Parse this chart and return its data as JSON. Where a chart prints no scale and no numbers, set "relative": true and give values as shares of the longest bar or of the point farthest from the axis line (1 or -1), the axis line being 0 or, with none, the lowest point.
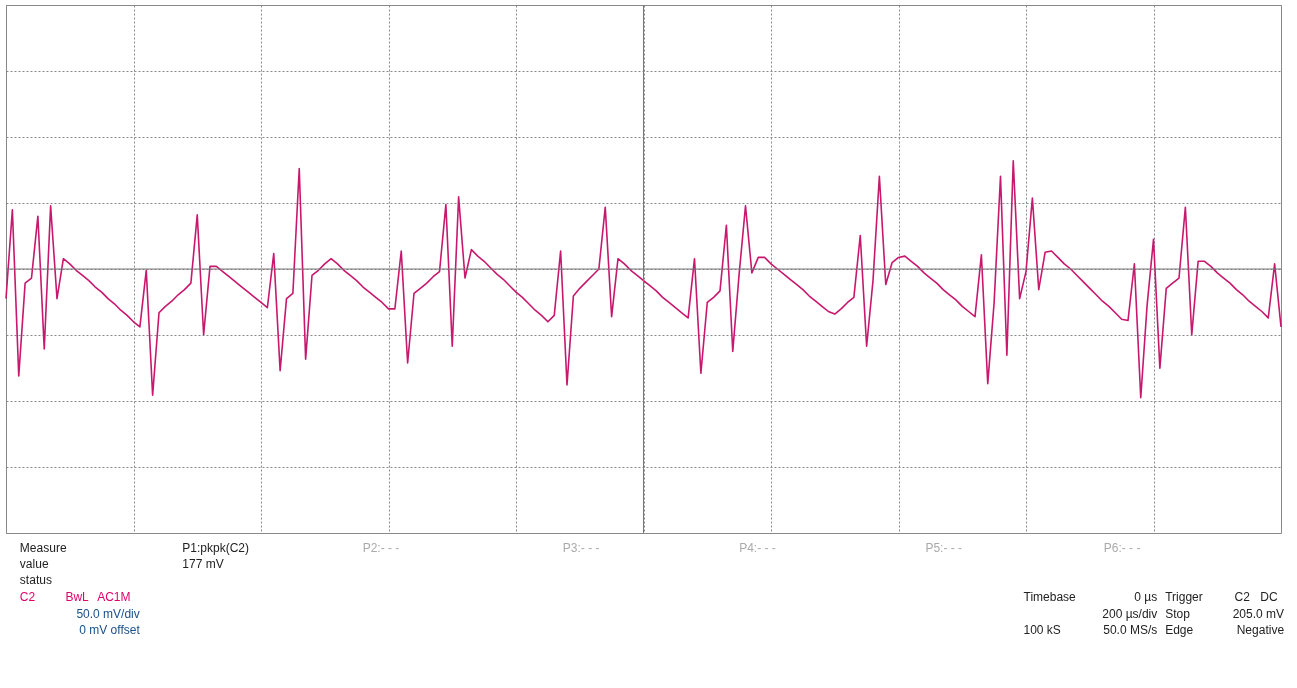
{
  "chart_data": {
    "type": "line",
    "relative": true,
    "tick_labels": false,
    "grid": true,
    "marker": "none",
    "line_style": "solid",
    "categories": [
      null,
      null,
      null,
      null,
      null,
      null,
      null,
      null,
      null,
      null,
      null,
      null,
      null,
      null,
      null,
      null,
      null,
      null,
      null,
      null,
      null,
      null,
      null,
      null,
      null,
      null,
      null,
      null,
      null,
      null,
      null,
      null,
      null,
      null,
      null,
      null,
      null,
      null,
      null,
      null,
      null,
      null,
      null,
      null,
      null,
      null,
      null,
      null,
      null,
      null,
      null,
      null,
      null,
      null,
      null,
      null,
      null,
      null,
      null,
      null,
      null,
      null,
      null,
      null,
      null,
      null,
      null,
      null,
      null,
      null,
      null,
      null,
      null,
      null,
      null,
      null,
      null,
      null,
      null,
      null,
      null,
      null,
      null,
      null,
      null,
      null,
      null,
      null,
      null,
      null,
      null,
      null,
      null,
      null,
      null,
      null,
      null,
      null,
      null,
      null,
      null,
      null,
      null,
      null,
      null,
      null,
      null,
      null,
      null,
      null,
      null,
      null,
      null,
      null,
      null,
      null,
      null,
      null,
      null,
      null,
      null,
      null,
      null,
      null,
      null,
      null,
      null,
      null,
      null,
      null,
      null,
      null,
      null,
      null,
      null,
      null,
      null,
      null,
      null,
      null,
      null,
      null,
      null,
      null,
      null,
      null,
      null,
      null,
      null,
      null,
      null,
      null,
      null,
      null,
      null,
      null,
      null,
      null,
      null,
      null,
      null,
      null,
      null,
      null,
      null,
      null,
      null,
      null,
      null,
      null,
      null,
      null,
      null,
      null,
      null,
      null,
      null,
      null,
      null,
      null,
      null,
      null,
      null,
      null,
      null,
      null,
      null,
      null,
      null,
      null,
      null,
      null,
      null,
      null,
      null,
      null,
      null,
      null,
      null,
      null,
      null
    ],
    "series": [
      {
        "color": "#c8186e",
        "values": [
          -0.23,
          0.46,
          -0.83,
          -0.11,
          -0.07,
          0.41,
          -0.62,
          0.49,
          -0.23,
          0.08,
          0.04,
          -0.01,
          -0.05,
          -0.09,
          -0.14,
          -0.18,
          -0.23,
          -0.27,
          -0.32,
          -0.36,
          -0.41,
          -0.45,
          -0.01,
          -0.98,
          -0.34,
          -0.29,
          -0.25,
          -0.2,
          -0.16,
          -0.11,
          0.42,
          -0.51,
          0.02,
          0.02,
          -0.02,
          -0.06,
          -0.1,
          -0.14,
          -0.18,
          -0.22,
          -0.26,
          -0.3,
          0.12,
          -0.79,
          -0.23,
          -0.19,
          0.78,
          -0.7,
          -0.05,
          -0.01,
          0.04,
          0.08,
          0.04,
          -0.01,
          -0.05,
          -0.09,
          -0.14,
          -0.18,
          -0.22,
          -0.26,
          -0.31,
          -0.31,
          0.14,
          -0.73,
          -0.19,
          -0.15,
          -0.11,
          -0.06,
          -0.02,
          0.5,
          -0.6,
          0.56,
          -0.07,
          0.15,
          0.1,
          0.06,
          0.01,
          -0.04,
          -0.08,
          -0.13,
          -0.18,
          -0.22,
          -0.27,
          -0.32,
          -0.36,
          -0.41,
          -0.36,
          0.14,
          -0.9,
          -0.21,
          -0.15,
          -0.1,
          -0.05,
          0.0,
          0.48,
          -0.37,
          0.08,
          0.04,
          -0.01,
          -0.05,
          -0.09,
          -0.13,
          -0.17,
          -0.22,
          -0.26,
          -0.3,
          -0.34,
          -0.38,
          0.08,
          -0.81,
          -0.26,
          -0.22,
          -0.17,
          0.34,
          -0.64,
          -0.04,
          0.49,
          -0.03,
          0.09,
          0.09,
          0.04,
          0.0,
          -0.04,
          -0.08,
          -0.12,
          -0.16,
          -0.21,
          -0.25,
          -0.29,
          -0.33,
          -0.35,
          -0.31,
          -0.26,
          -0.22,
          0.26,
          -0.6,
          -0.09,
          0.72,
          -0.12,
          0.05,
          0.09,
          0.1,
          0.06,
          0.02,
          -0.03,
          -0.07,
          -0.11,
          -0.16,
          -0.2,
          -0.24,
          -0.29,
          -0.33,
          -0.37,
          0.11,
          -0.89,
          -0.26,
          0.72,
          -0.67,
          0.84,
          -0.23,
          -0.02,
          0.55,
          -0.16,
          0.13,
          0.14,
          0.09,
          0.04,
          0.0,
          -0.05,
          -0.1,
          -0.15,
          -0.2,
          -0.25,
          -0.29,
          -0.34,
          -0.39,
          -0.4,
          0.04,
          -1,
          -0.28,
          0.23,
          -0.77,
          -0.15,
          -0.11,
          -0.07,
          0.48,
          -0.51,
          0.06,
          0.06,
          0.02,
          -0.03,
          -0.07,
          -0.11,
          -0.16,
          -0.2,
          -0.25,
          -0.29,
          -0.33,
          -0.38,
          0.04,
          -0.45
        ]
      }
    ],
    "annotations": [
      "Measure",
      "P1:pkpk(C2)",
      "P2:- - -",
      "P3:- - -",
      "P4:- - -",
      "P5:- - -",
      "P6:- - -",
      "value",
      "177 mV",
      "status",
      "C2",
      "BwL",
      "AC1M",
      "50.0 mV/div",
      "0 mV offset",
      "Timebase",
      "0 µs",
      "200 µs/div",
      "100 kS",
      "50.0 MS/s",
      "Trigger",
      "C2",
      "DC",
      "Stop",
      "205.0 mV",
      "Edge",
      "Negative"
    ]
  }
}
